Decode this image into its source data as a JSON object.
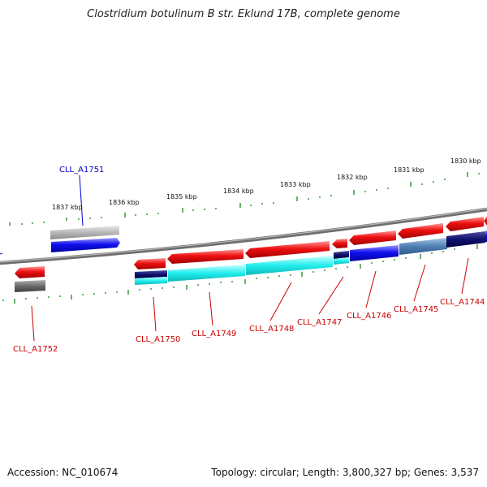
{
  "title": "Clostridium botulinum B str. Eklund 17B, complete genome",
  "footer": {
    "accession": "Accession: NC_010674",
    "summary": "Topology: circular; Length: 3,800,327 bp; Genes: 3,537"
  },
  "colors": {
    "backbone": "#8a8a8a",
    "tick": "#1a8a1a",
    "forward_cds": "#ee1111",
    "reverse_cds": "#1111ee",
    "label_red": "#cc0000",
    "label_blue": "#0000cc"
  },
  "scale": {
    "ticks": [
      "1837 kbp",
      "1836 kbp",
      "1835 kbp",
      "1834 kbp",
      "1833 kbp",
      "1832 kbp",
      "1831 kbp",
      "1830 kbp"
    ]
  },
  "genes": [
    {
      "label": "CLL_A1751",
      "color": "blue"
    },
    {
      "label": "CLL_A1752",
      "color": "red"
    },
    {
      "label": "CLL_A1750",
      "color": "red"
    },
    {
      "label": "CLL_A1749",
      "color": "red"
    },
    {
      "label": "CLL_A1748",
      "color": "red"
    },
    {
      "label": "CLL_A1747",
      "color": "red"
    },
    {
      "label": "CLL_A1746",
      "color": "red"
    },
    {
      "label": "CLL_A1745",
      "color": "red"
    },
    {
      "label": "CLL_A1744",
      "color": "red"
    }
  ]
}
